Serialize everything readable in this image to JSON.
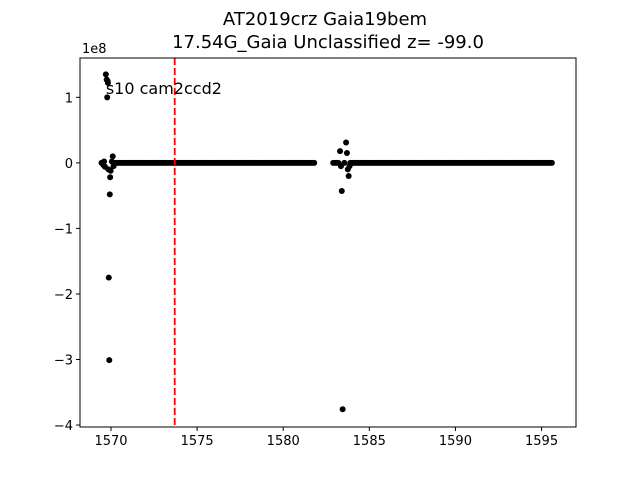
{
  "chart_data": {
    "type": "scatter",
    "title_line1": "AT2019crz  Gaia19bem",
    "title_line2": "17.54G_Gaia Unclassified z= -99.0",
    "xlabel": "",
    "ylabel": "",
    "y_offset_text": "1e8",
    "annotation": "s10 cam2ccd2",
    "xlim": [
      1568.2,
      1597.0
    ],
    "ylim": [
      -4.03,
      1.6
    ],
    "x_ticks": [
      1570,
      1575,
      1580,
      1585,
      1590,
      1595
    ],
    "x_tick_labels": [
      "1570",
      "1575",
      "1580",
      "1585",
      "1590",
      "1595"
    ],
    "y_ticks": [
      -4,
      -3,
      -2,
      -1,
      0,
      1
    ],
    "y_tick_labels": [
      "−4",
      "−3",
      "−2",
      "−1",
      "0",
      "1"
    ],
    "vline": {
      "x": 1573.7,
      "color": "#ff0000",
      "style": "dashed"
    },
    "point_color": "#000000",
    "series": [
      {
        "points": [
          [
            1569.45,
            0.0
          ],
          [
            1569.55,
            -0.03
          ],
          [
            1569.6,
            0.02
          ],
          [
            1569.65,
            -0.06
          ],
          [
            1569.7,
            1.35
          ],
          [
            1569.75,
            1.27
          ],
          [
            1569.78,
            1.0
          ],
          [
            1569.8,
            1.25
          ],
          [
            1569.82,
            1.22
          ],
          [
            1569.85,
            -0.1
          ],
          [
            1569.87,
            -1.75
          ],
          [
            1569.9,
            -3.01
          ],
          [
            1569.93,
            -0.48
          ],
          [
            1569.95,
            -0.22
          ],
          [
            1569.98,
            -0.12
          ],
          [
            1570.05,
            0.02
          ],
          [
            1570.1,
            0.1
          ],
          [
            1570.15,
            -0.05
          ]
        ],
        "segments": [
          {
            "start": 1570.2,
            "end": 1581.8,
            "step": 0.1,
            "y": 0.0
          },
          {
            "start": 1582.9,
            "end": 1583.2,
            "step": 0.1,
            "y": 0.0
          },
          {
            "start": 1583.9,
            "end": 1595.6,
            "step": 0.1,
            "y": 0.0
          }
        ]
      },
      {
        "points": [
          [
            1583.3,
            0.18
          ],
          [
            1583.35,
            -0.05
          ],
          [
            1583.4,
            -0.43
          ],
          [
            1583.45,
            -3.76
          ],
          [
            1583.55,
            0.0
          ],
          [
            1583.65,
            0.31
          ],
          [
            1583.7,
            0.15
          ],
          [
            1583.75,
            -0.1
          ],
          [
            1583.8,
            -0.2
          ],
          [
            1583.85,
            -0.05
          ]
        ],
        "segments": []
      }
    ]
  }
}
